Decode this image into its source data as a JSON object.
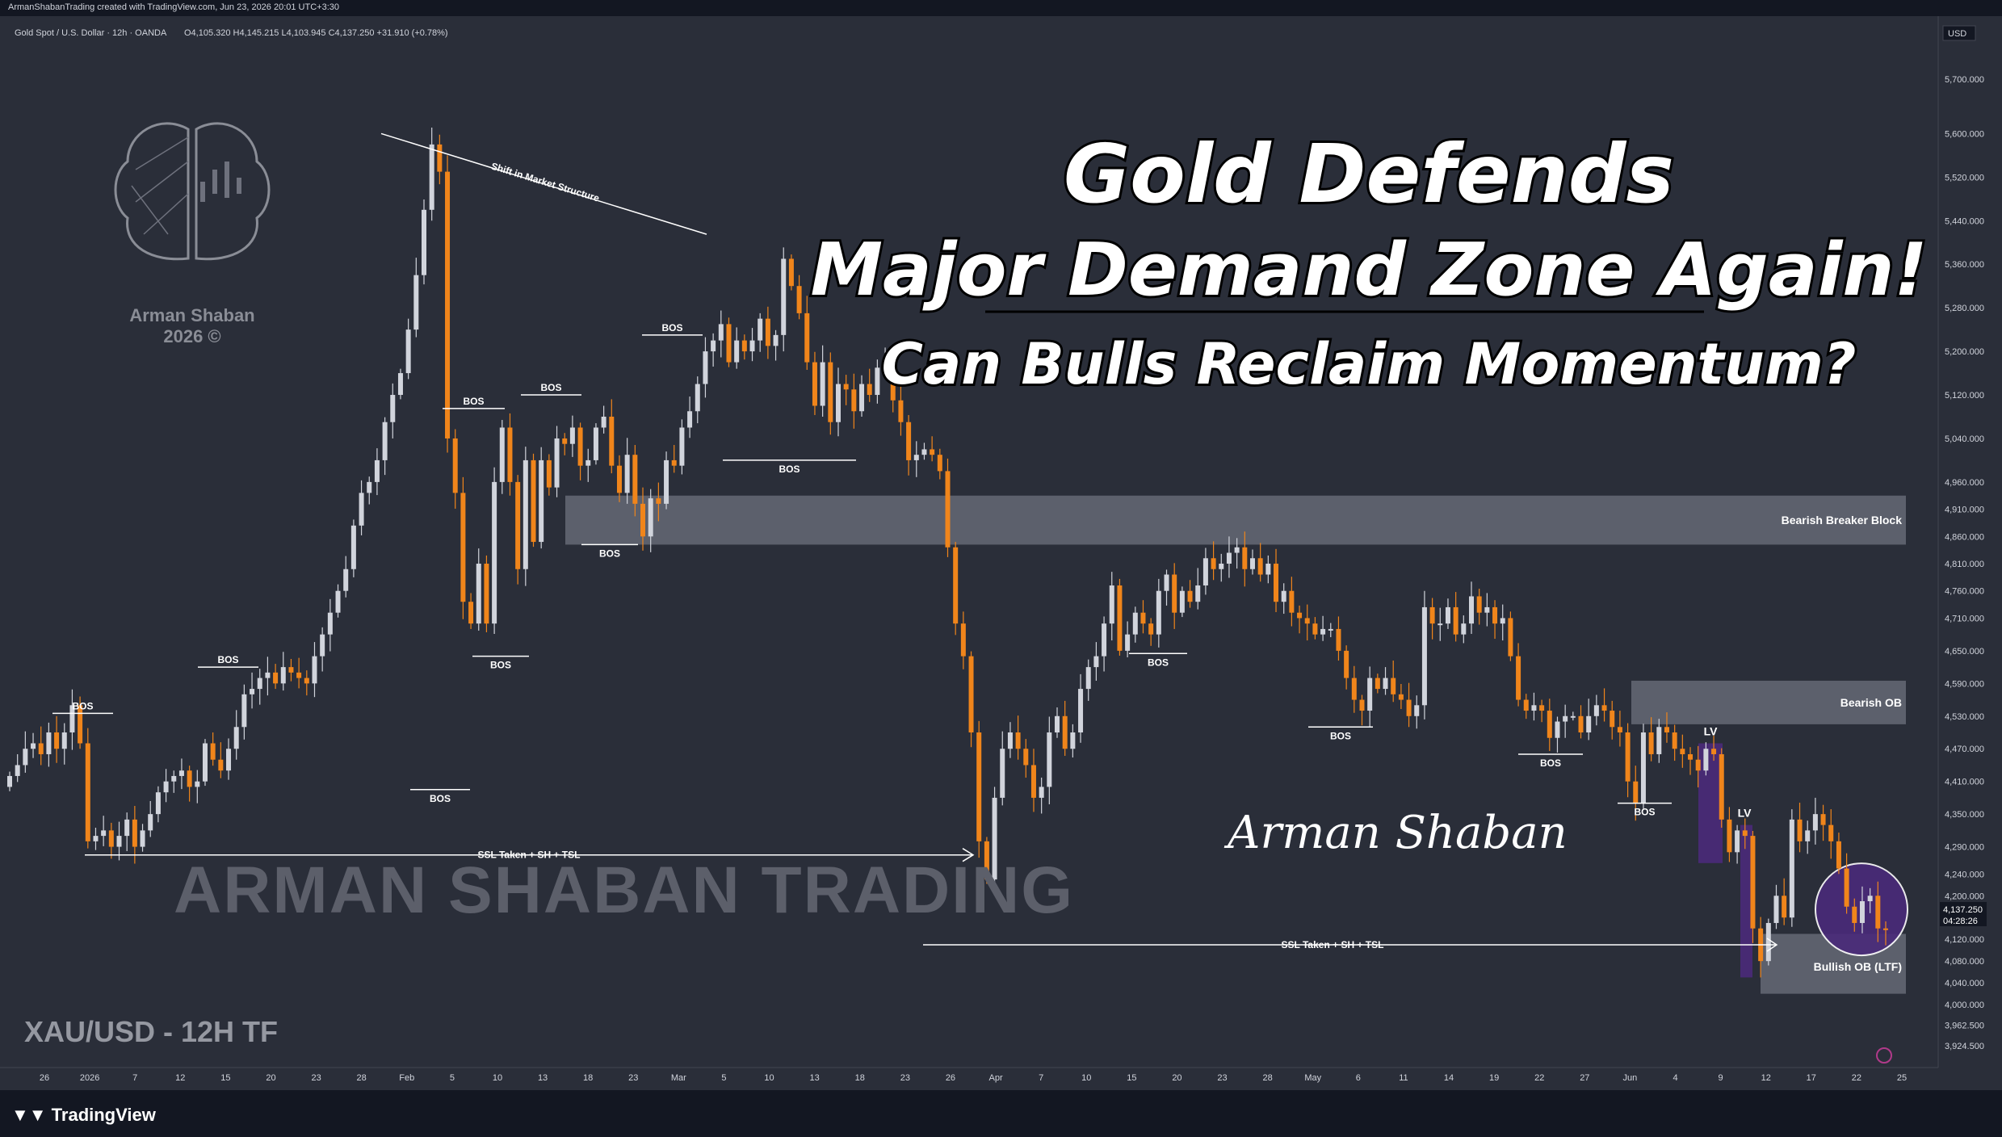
{
  "header": {
    "created_by": "ArmanShabanTrading created with TradingView.com, Jun 23, 2026 20:01 UTC+3:30",
    "symbol": "Gold Spot / U.S. Dollar · 12h · OANDA",
    "ohlc": "O4,105.320  H4,145.215  L4,103.945  C4,137.250  +31.910 (+0.78%)",
    "currency": "USD"
  },
  "title": {
    "line1": "Gold Defends",
    "line2": "Major Demand Zone Again!",
    "line3": "Can Bulls Reclaim Momentum?"
  },
  "logo": {
    "name": "Arman Shaban",
    "year": "2026 ©"
  },
  "watermark": "ARMAN SHABAN TRADING",
  "signature": "Arman Shaban",
  "timeframe_label": "XAU/USD - 12H TF",
  "footer": {
    "brand": "TradingView"
  },
  "colors": {
    "background": "#2a2e39",
    "bull_candle": "#d1d4dc",
    "bear_candle": "#f0851b",
    "zone": "#6e717d",
    "lv_zone": "#4a2a7a"
  },
  "chart_data": {
    "type": "candlestick",
    "ylim": [
      3900,
      5800
    ],
    "y_ticks": [
      "5,700.000",
      "5,600.000",
      "5,520.000",
      "5,440.000",
      "5,360.000",
      "5,280.000",
      "5,200.000",
      "5,120.000",
      "5,040.000",
      "4,960.000",
      "4,910.000",
      "4,860.000",
      "4,810.000",
      "4,760.000",
      "4,710.000",
      "4,650.000",
      "4,590.000",
      "4,530.000",
      "4,470.000",
      "4,410.000",
      "4,350.000",
      "4,290.000",
      "4,240.000",
      "4,200.000",
      "4,160.000",
      "4,120.000",
      "4,080.000",
      "4,040.000",
      "4,000.000",
      "3,962.500",
      "3,924.500"
    ],
    "x_ticks": [
      "26",
      "2026",
      "7",
      "12",
      "15",
      "20",
      "23",
      "28",
      "Feb",
      "5",
      "10",
      "13",
      "18",
      "23",
      "Mar",
      "5",
      "10",
      "13",
      "18",
      "23",
      "26",
      "Apr",
      "7",
      "10",
      "15",
      "20",
      "23",
      "28",
      "May",
      "6",
      "11",
      "14",
      "19",
      "22",
      "27",
      "Jun",
      "4",
      "9",
      "12",
      "17",
      "22",
      "25"
    ],
    "last_price": "4,137.250",
    "countdown": "04:28:26",
    "annotations": [
      "Shift in Market Structure",
      "BOS",
      "SSL Taken + SH + TSL",
      "LV",
      "Bearish Breaker Block",
      "Bearish OB",
      "Bullish OB (LTF)"
    ],
    "zones": [
      {
        "name": "Bearish Breaker Block",
        "low": 4845,
        "high": 4935
      },
      {
        "name": "Bearish OB",
        "low": 4515,
        "high": 4595
      },
      {
        "name": "Bullish OB (LTF)",
        "low": 4020,
        "high": 4130
      }
    ],
    "candles_close": [
      4420,
      4440,
      4470,
      4480,
      4460,
      4500,
      4470,
      4500,
      4550,
      4480,
      4300,
      4310,
      4320,
      4290,
      4310,
      4340,
      4290,
      4320,
      4350,
      4390,
      4410,
      4420,
      4430,
      4400,
      4410,
      4480,
      4450,
      4430,
      4470,
      4510,
      4570,
      4580,
      4600,
      4610,
      4590,
      4620,
      4610,
      4600,
      4590,
      4640,
      4680,
      4720,
      4760,
      4800,
      4880,
      4940,
      4960,
      5000,
      5070,
      5120,
      5160,
      5240,
      5340,
      5460,
      5580,
      5530,
      5040,
      4940,
      4740,
      4700,
      4810,
      4700,
      4960,
      5060,
      4960,
      4800,
      5000,
      4850,
      5000,
      4950,
      5040,
      5030,
      5060,
      4990,
      5000,
      5060,
      5080,
      4990,
      4940,
      5010,
      4920,
      4860,
      4930,
      4920,
      5000,
      4990,
      5060,
      5090,
      5140,
      5200,
      5220,
      5250,
      5180,
      5220,
      5200,
      5220,
      5260,
      5210,
      5230,
      5370,
      5320,
      5270,
      5180,
      5100,
      5180,
      5070,
      5140,
      5130,
      5090,
      5140,
      5120,
      5170,
      5180,
      5110,
      5070,
      5000,
      5010,
      5020,
      5010,
      4980,
      4840,
      4700,
      4640,
      4500,
      4300,
      4230,
      4380,
      4470,
      4500,
      4470,
      4440,
      4380,
      4400,
      4500,
      4530,
      4470,
      4500,
      4580,
      4620,
      4640,
      4700,
      4770,
      4650,
      4680,
      4720,
      4700,
      4680,
      4760,
      4790,
      4720,
      4760,
      4740,
      4770,
      4820,
      4800,
      4810,
      4830,
      4840,
      4800,
      4820,
      4790,
      4810,
      4740,
      4760,
      4720,
      4710,
      4700,
      4680,
      4690,
      4690,
      4650,
      4600,
      4560,
      4540,
      4600,
      4580,
      4600,
      4570,
      4560,
      4530,
      4550,
      4730,
      4700,
      4700,
      4730,
      4680,
      4700,
      4750,
      4720,
      4730,
      4700,
      4710,
      4640,
      4560,
      4540,
      4550,
      4540,
      4490,
      4520,
      4530,
      4530,
      4500,
      4530,
      4550,
      4540,
      4510,
      4500,
      4410,
      4370,
      4500,
      4460,
      4510,
      4500,
      4470,
      4460,
      4450,
      4430,
      4470,
      4460,
      4340,
      4280,
      4320,
      4310,
      4140,
      4080,
      4150,
      4200,
      4160,
      4340,
      4300,
      4320,
      4350,
      4330,
      4300,
      4250,
      4180,
      4150,
      4190,
      4200,
      4140,
      4137
    ]
  }
}
